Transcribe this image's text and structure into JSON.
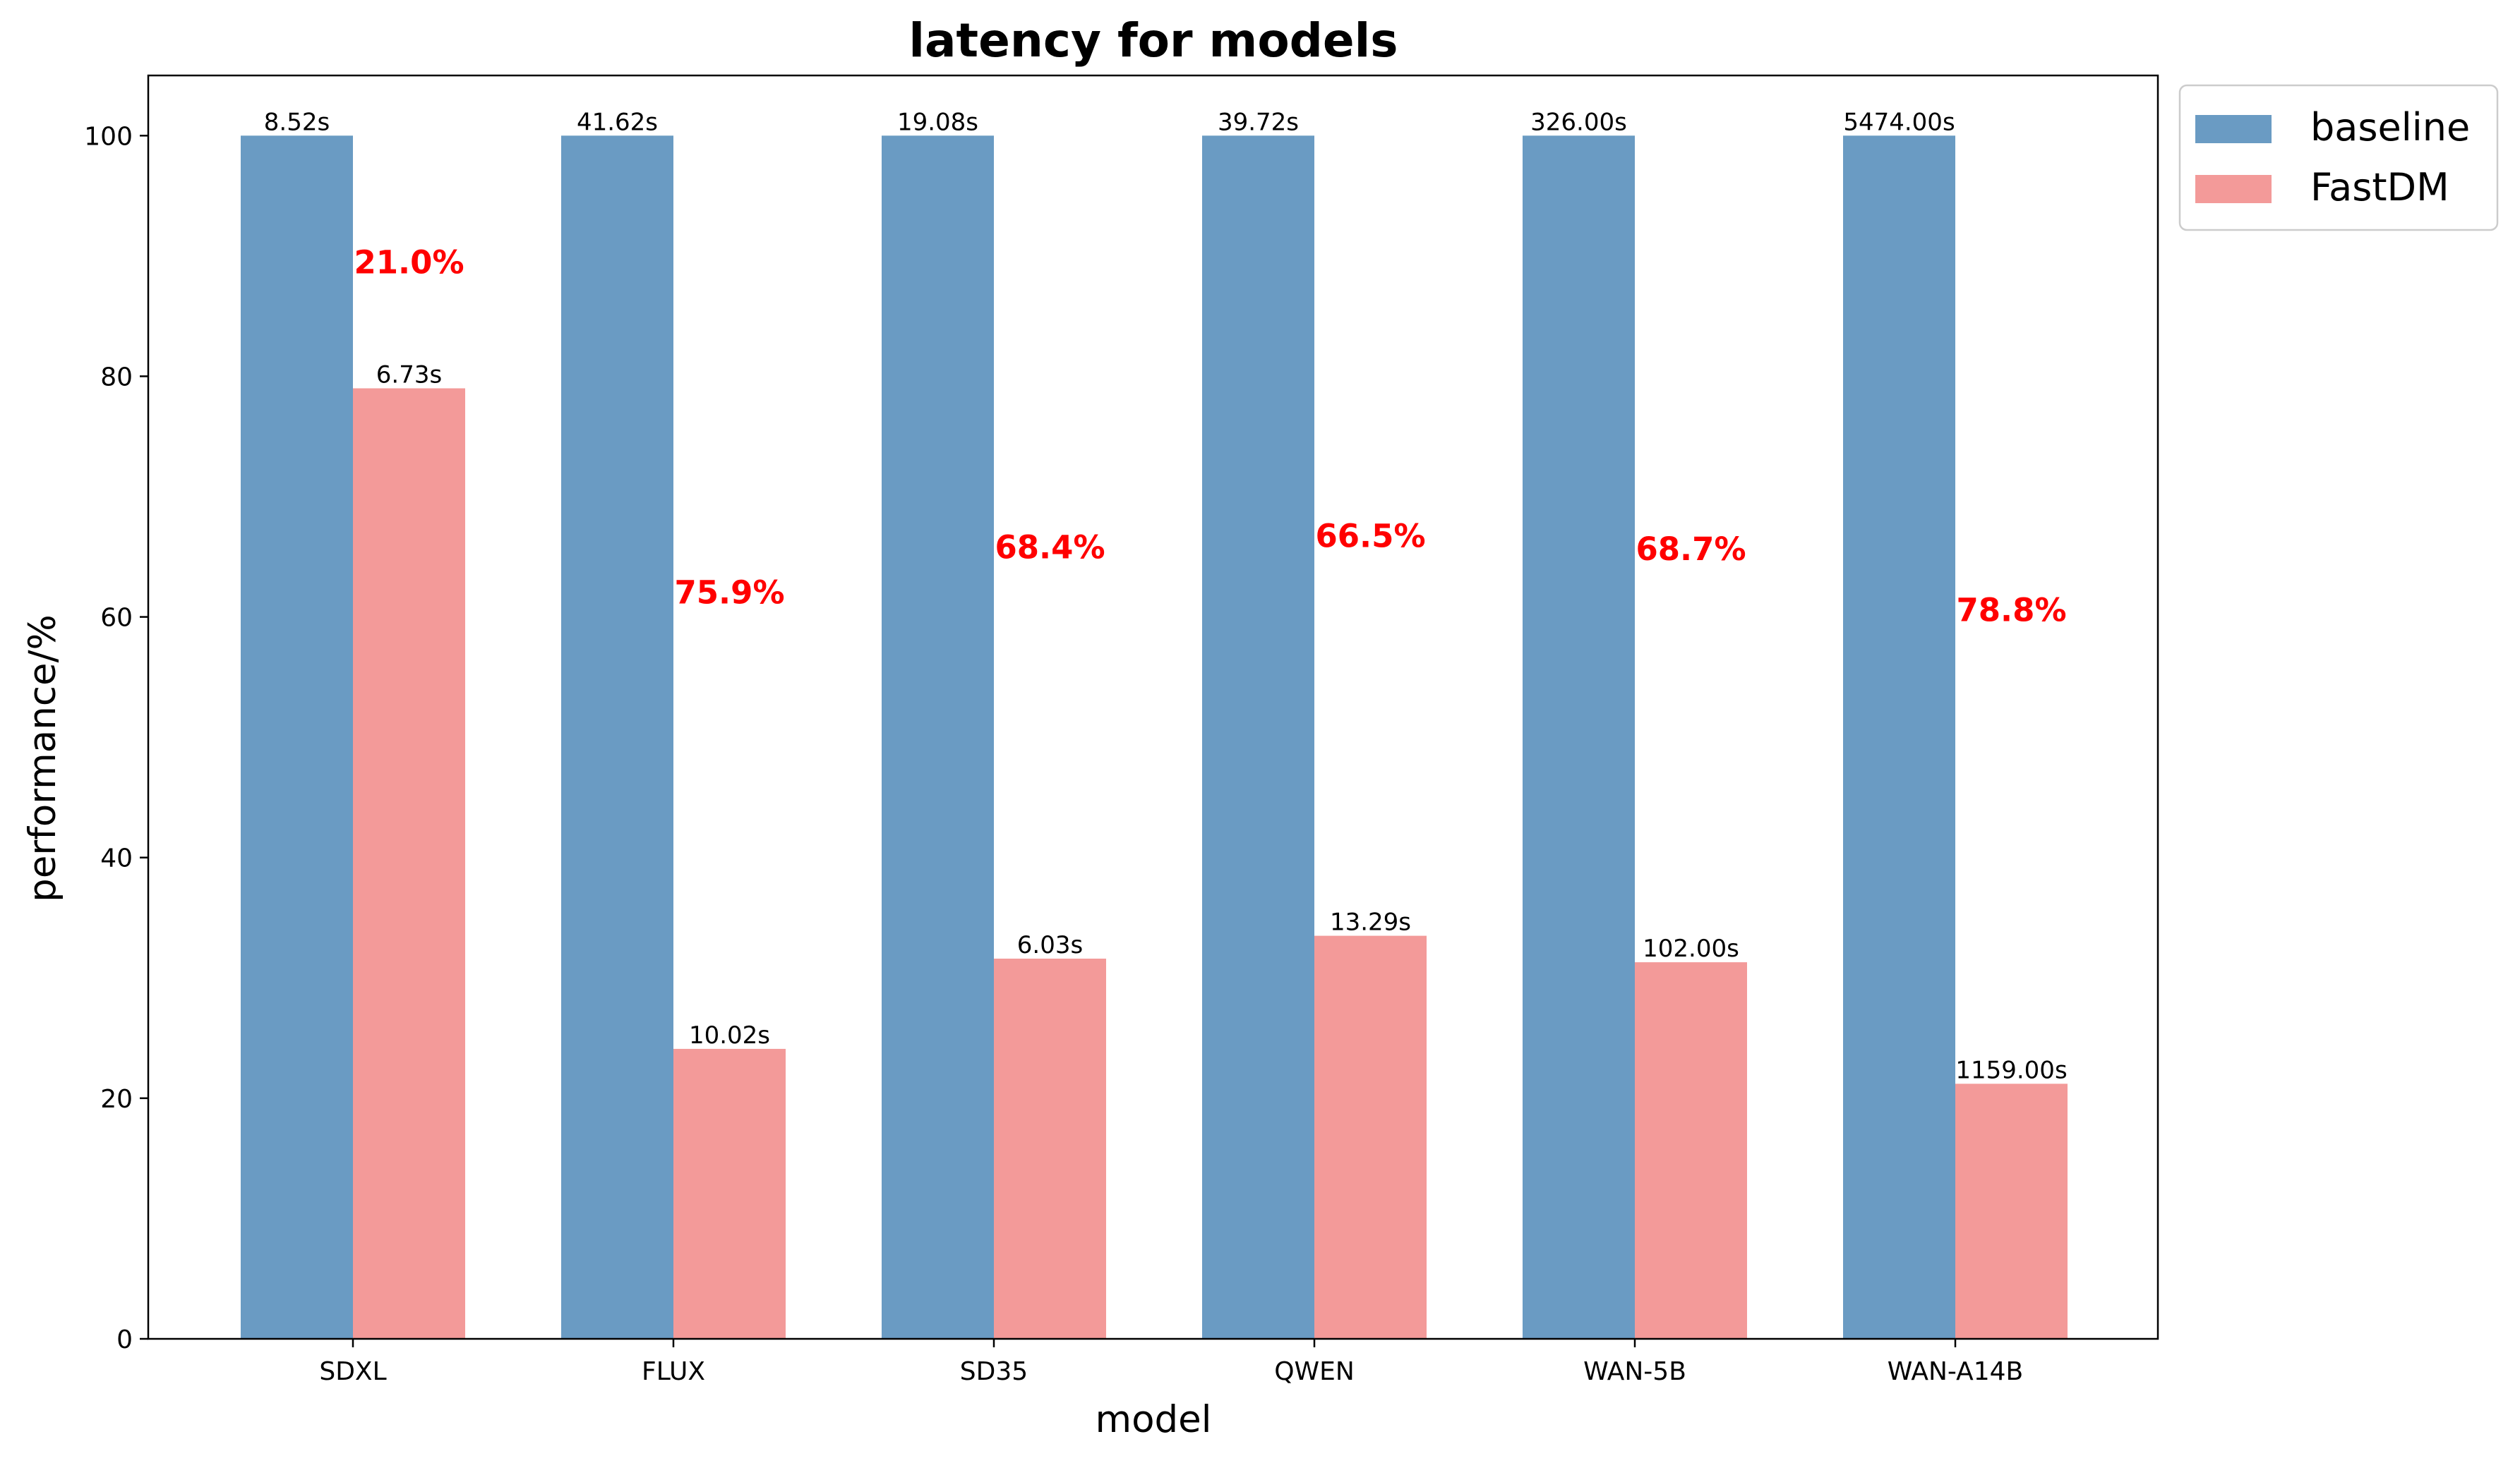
{
  "chart_data": {
    "type": "bar",
    "title": "latency for models",
    "xlabel": "model",
    "ylabel": "performance/%",
    "ylim": [
      0,
      105
    ],
    "yticks": [
      0,
      20,
      40,
      60,
      80,
      100
    ],
    "grid": false,
    "legend_position": "outside-top-right",
    "categories": [
      "SDXL",
      "FLUX",
      "SD35",
      "QWEN",
      "WAN-5B",
      "WAN-A14B"
    ],
    "series": [
      {
        "name": "baseline",
        "color": "#6a9bc3",
        "values": [
          100,
          100,
          100,
          100,
          100,
          100
        ],
        "labels": [
          "8.52s",
          "41.62s",
          "19.08s",
          "39.72s",
          "326.00s",
          "5474.00s"
        ]
      },
      {
        "name": "FastDM",
        "color": "#f39a99",
        "values": [
          79.0,
          24.1,
          31.6,
          33.5,
          31.3,
          21.2
        ],
        "labels": [
          "6.73s",
          "10.02s",
          "6.03s",
          "13.29s",
          "102.00s",
          "1159.00s"
        ]
      }
    ],
    "annotations": [
      {
        "category": "SDXL",
        "text": "21.0%"
      },
      {
        "category": "FLUX",
        "text": "75.9%"
      },
      {
        "category": "SD35",
        "text": "68.4%"
      },
      {
        "category": "QWEN",
        "text": "66.5%"
      },
      {
        "category": "WAN-5B",
        "text": "68.7%"
      },
      {
        "category": "WAN-A14B",
        "text": "78.8%"
      }
    ]
  }
}
